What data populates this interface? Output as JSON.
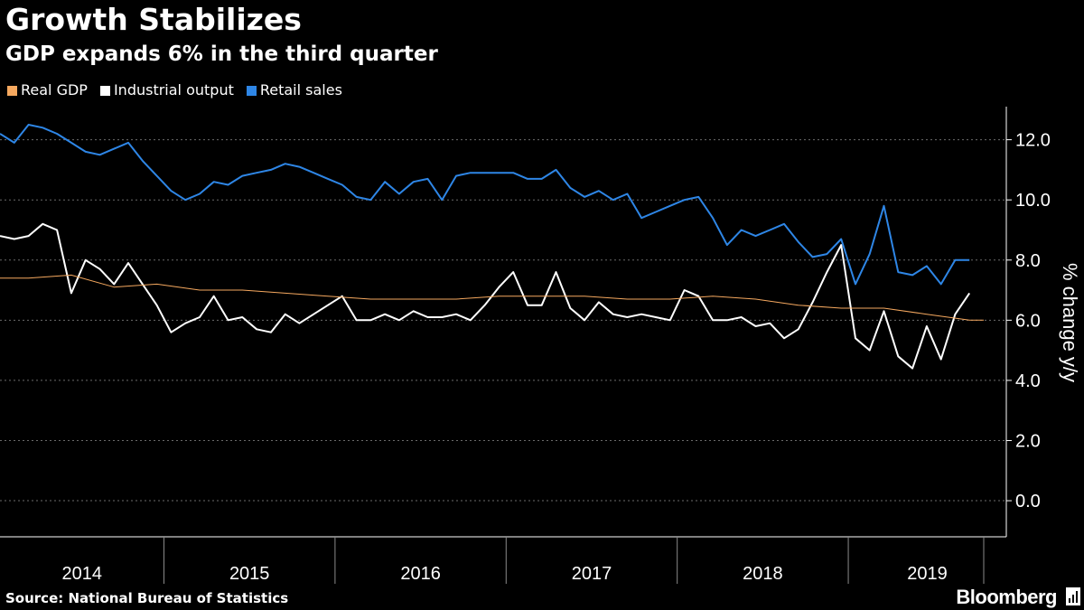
{
  "header": {
    "title": "Growth Stabilizes",
    "subtitle": "GDP expands 6% in the third quarter"
  },
  "footer": {
    "source": "Source: National Bureau of Statistics",
    "brand": "Bloomberg"
  },
  "chart_data": {
    "type": "line",
    "title": "Growth Stabilizes",
    "subtitle": "GDP expands 6% in the third quarter",
    "ylabel": "% change y/y",
    "xlabel": "",
    "xlim": [
      "2014-01",
      "2019-10"
    ],
    "ylim": [
      -1.2,
      13.1
    ],
    "yticks": [
      0.0,
      2.0,
      4.0,
      6.0,
      8.0,
      10.0,
      12.0
    ],
    "ytick_labels": [
      "0.0",
      "2.0",
      "4.0",
      "6.0",
      "8.0",
      "10.0",
      "12.0"
    ],
    "xticks": [
      "2014",
      "2015",
      "2016",
      "2017",
      "2018",
      "2019"
    ],
    "grid": true,
    "legend_position": "top-left",
    "series": [
      {
        "name": "Real GDP",
        "color": "#f5a85f",
        "points": [
          [
            "2014-01",
            7.4
          ],
          [
            "2014-03",
            7.4
          ],
          [
            "2014-06",
            7.5
          ],
          [
            "2014-09",
            7.1
          ],
          [
            "2014-12",
            7.2
          ],
          [
            "2015-03",
            7.0
          ],
          [
            "2015-06",
            7.0
          ],
          [
            "2015-09",
            6.9
          ],
          [
            "2015-12",
            6.8
          ],
          [
            "2016-03",
            6.7
          ],
          [
            "2016-06",
            6.7
          ],
          [
            "2016-09",
            6.7
          ],
          [
            "2016-12",
            6.8
          ],
          [
            "2017-03",
            6.8
          ],
          [
            "2017-06",
            6.8
          ],
          [
            "2017-09",
            6.7
          ],
          [
            "2017-12",
            6.7
          ],
          [
            "2018-03",
            6.8
          ],
          [
            "2018-06",
            6.7
          ],
          [
            "2018-09",
            6.5
          ],
          [
            "2018-12",
            6.4
          ],
          [
            "2019-03",
            6.4
          ],
          [
            "2019-06",
            6.2
          ],
          [
            "2019-09",
            6.0
          ],
          [
            "2019-10",
            6.0
          ]
        ]
      },
      {
        "name": "Industrial output",
        "color": "#ffffff",
        "points": [
          [
            "2014-01",
            8.8
          ],
          [
            "2014-02",
            8.7
          ],
          [
            "2014-03",
            8.8
          ],
          [
            "2014-04",
            9.2
          ],
          [
            "2014-05",
            9.0
          ],
          [
            "2014-06",
            6.9
          ],
          [
            "2014-07",
            8.0
          ],
          [
            "2014-08",
            7.7
          ],
          [
            "2014-09",
            7.2
          ],
          [
            "2014-10",
            7.9
          ],
          [
            "2014-11",
            7.2
          ],
          [
            "2014-12",
            6.5
          ],
          [
            "2015-01",
            5.6
          ],
          [
            "2015-02",
            5.9
          ],
          [
            "2015-03",
            6.1
          ],
          [
            "2015-04",
            6.8
          ],
          [
            "2015-05",
            6.0
          ],
          [
            "2015-06",
            6.1
          ],
          [
            "2015-07",
            5.7
          ],
          [
            "2015-08",
            5.6
          ],
          [
            "2015-09",
            6.2
          ],
          [
            "2015-10",
            5.9
          ],
          [
            "2015-11",
            6.2
          ],
          [
            "2015-12",
            6.5
          ],
          [
            "2016-01",
            6.8
          ],
          [
            "2016-02",
            6.0
          ],
          [
            "2016-03",
            6.0
          ],
          [
            "2016-04",
            6.2
          ],
          [
            "2016-05",
            6.0
          ],
          [
            "2016-06",
            6.3
          ],
          [
            "2016-07",
            6.1
          ],
          [
            "2016-08",
            6.1
          ],
          [
            "2016-09",
            6.2
          ],
          [
            "2016-10",
            6.0
          ],
          [
            "2016-11",
            6.5
          ],
          [
            "2016-12",
            7.1
          ],
          [
            "2017-01",
            7.6
          ],
          [
            "2017-02",
            6.5
          ],
          [
            "2017-03",
            6.5
          ],
          [
            "2017-04",
            7.6
          ],
          [
            "2017-05",
            6.4
          ],
          [
            "2017-06",
            6.0
          ],
          [
            "2017-07",
            6.6
          ],
          [
            "2017-08",
            6.2
          ],
          [
            "2017-09",
            6.1
          ],
          [
            "2017-10",
            6.2
          ],
          [
            "2017-11",
            6.1
          ],
          [
            "2017-12",
            6.0
          ],
          [
            "2018-01",
            7.0
          ],
          [
            "2018-02",
            6.8
          ],
          [
            "2018-03",
            6.0
          ],
          [
            "2018-04",
            6.0
          ],
          [
            "2018-05",
            6.1
          ],
          [
            "2018-06",
            5.8
          ],
          [
            "2018-07",
            5.9
          ],
          [
            "2018-08",
            5.4
          ],
          [
            "2018-09",
            5.7
          ],
          [
            "2018-10",
            6.6
          ],
          [
            "2018-11",
            7.6
          ],
          [
            "2018-12",
            8.5
          ],
          [
            "2019-01",
            5.4
          ],
          [
            "2019-02",
            5.0
          ],
          [
            "2019-03",
            6.3
          ],
          [
            "2019-04",
            4.8
          ],
          [
            "2019-05",
            4.4
          ],
          [
            "2019-06",
            5.8
          ],
          [
            "2019-07",
            4.7
          ],
          [
            "2019-08",
            6.2
          ],
          [
            "2019-09",
            6.9
          ]
        ]
      },
      {
        "name": "Retail sales",
        "color": "#2e86e6",
        "points": [
          [
            "2014-01",
            12.2
          ],
          [
            "2014-02",
            11.9
          ],
          [
            "2014-03",
            12.5
          ],
          [
            "2014-04",
            12.4
          ],
          [
            "2014-05",
            12.2
          ],
          [
            "2014-06",
            11.9
          ],
          [
            "2014-07",
            11.6
          ],
          [
            "2014-08",
            11.5
          ],
          [
            "2014-09",
            11.7
          ],
          [
            "2014-10",
            11.9
          ],
          [
            "2014-11",
            11.3
          ],
          [
            "2014-12",
            10.8
          ],
          [
            "2015-01",
            10.3
          ],
          [
            "2015-02",
            10.0
          ],
          [
            "2015-03",
            10.2
          ],
          [
            "2015-04",
            10.6
          ],
          [
            "2015-05",
            10.5
          ],
          [
            "2015-06",
            10.8
          ],
          [
            "2015-07",
            10.9
          ],
          [
            "2015-08",
            11.0
          ],
          [
            "2015-09",
            11.2
          ],
          [
            "2015-10",
            11.1
          ],
          [
            "2015-11",
            10.9
          ],
          [
            "2015-12",
            10.7
          ],
          [
            "2016-01",
            10.5
          ],
          [
            "2016-02",
            10.1
          ],
          [
            "2016-03",
            10.0
          ],
          [
            "2016-04",
            10.6
          ],
          [
            "2016-05",
            10.2
          ],
          [
            "2016-06",
            10.6
          ],
          [
            "2016-07",
            10.7
          ],
          [
            "2016-08",
            10.0
          ],
          [
            "2016-09",
            10.8
          ],
          [
            "2016-10",
            10.9
          ],
          [
            "2016-11",
            10.9
          ],
          [
            "2016-12",
            10.9
          ],
          [
            "2017-01",
            10.9
          ],
          [
            "2017-02",
            10.7
          ],
          [
            "2017-03",
            10.7
          ],
          [
            "2017-04",
            11.0
          ],
          [
            "2017-05",
            10.4
          ],
          [
            "2017-06",
            10.1
          ],
          [
            "2017-07",
            10.3
          ],
          [
            "2017-08",
            10.0
          ],
          [
            "2017-09",
            10.2
          ],
          [
            "2017-10",
            9.4
          ],
          [
            "2017-11",
            9.6
          ],
          [
            "2017-12",
            9.8
          ],
          [
            "2018-01",
            10.0
          ],
          [
            "2018-02",
            10.1
          ],
          [
            "2018-03",
            9.4
          ],
          [
            "2018-04",
            8.5
          ],
          [
            "2018-05",
            9.0
          ],
          [
            "2018-06",
            8.8
          ],
          [
            "2018-07",
            9.0
          ],
          [
            "2018-08",
            9.2
          ],
          [
            "2018-09",
            8.6
          ],
          [
            "2018-10",
            8.1
          ],
          [
            "2018-11",
            8.2
          ],
          [
            "2018-12",
            8.7
          ],
          [
            "2019-01",
            7.2
          ],
          [
            "2019-02",
            8.2
          ],
          [
            "2019-03",
            9.8
          ],
          [
            "2019-04",
            7.6
          ],
          [
            "2019-05",
            7.5
          ],
          [
            "2019-06",
            7.8
          ],
          [
            "2019-07",
            7.2
          ],
          [
            "2019-08",
            8.0
          ],
          [
            "2019-09",
            8.0
          ]
        ]
      }
    ]
  }
}
